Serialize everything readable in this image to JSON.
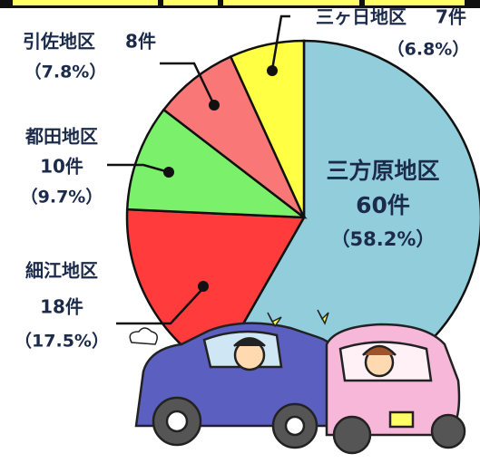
{
  "chart_data": {
    "type": "pie",
    "categories": [
      "三方原地区",
      "細江地区",
      "都田地区",
      "引佐地区",
      "三ヶ日地区"
    ],
    "values": [
      60,
      18,
      10,
      8,
      7
    ],
    "value_labels": [
      "60件",
      "18件",
      "10件",
      "8件",
      "7件"
    ],
    "percent_labels": [
      "（58.2%）",
      "（17.5%）",
      "（9.7%）",
      "（7.8%）",
      "（6.8%）"
    ],
    "colors": [
      "#92cddc",
      "#ff3b3b",
      "#7bf06a",
      "#f97777",
      "#ffff44"
    ]
  }
}
